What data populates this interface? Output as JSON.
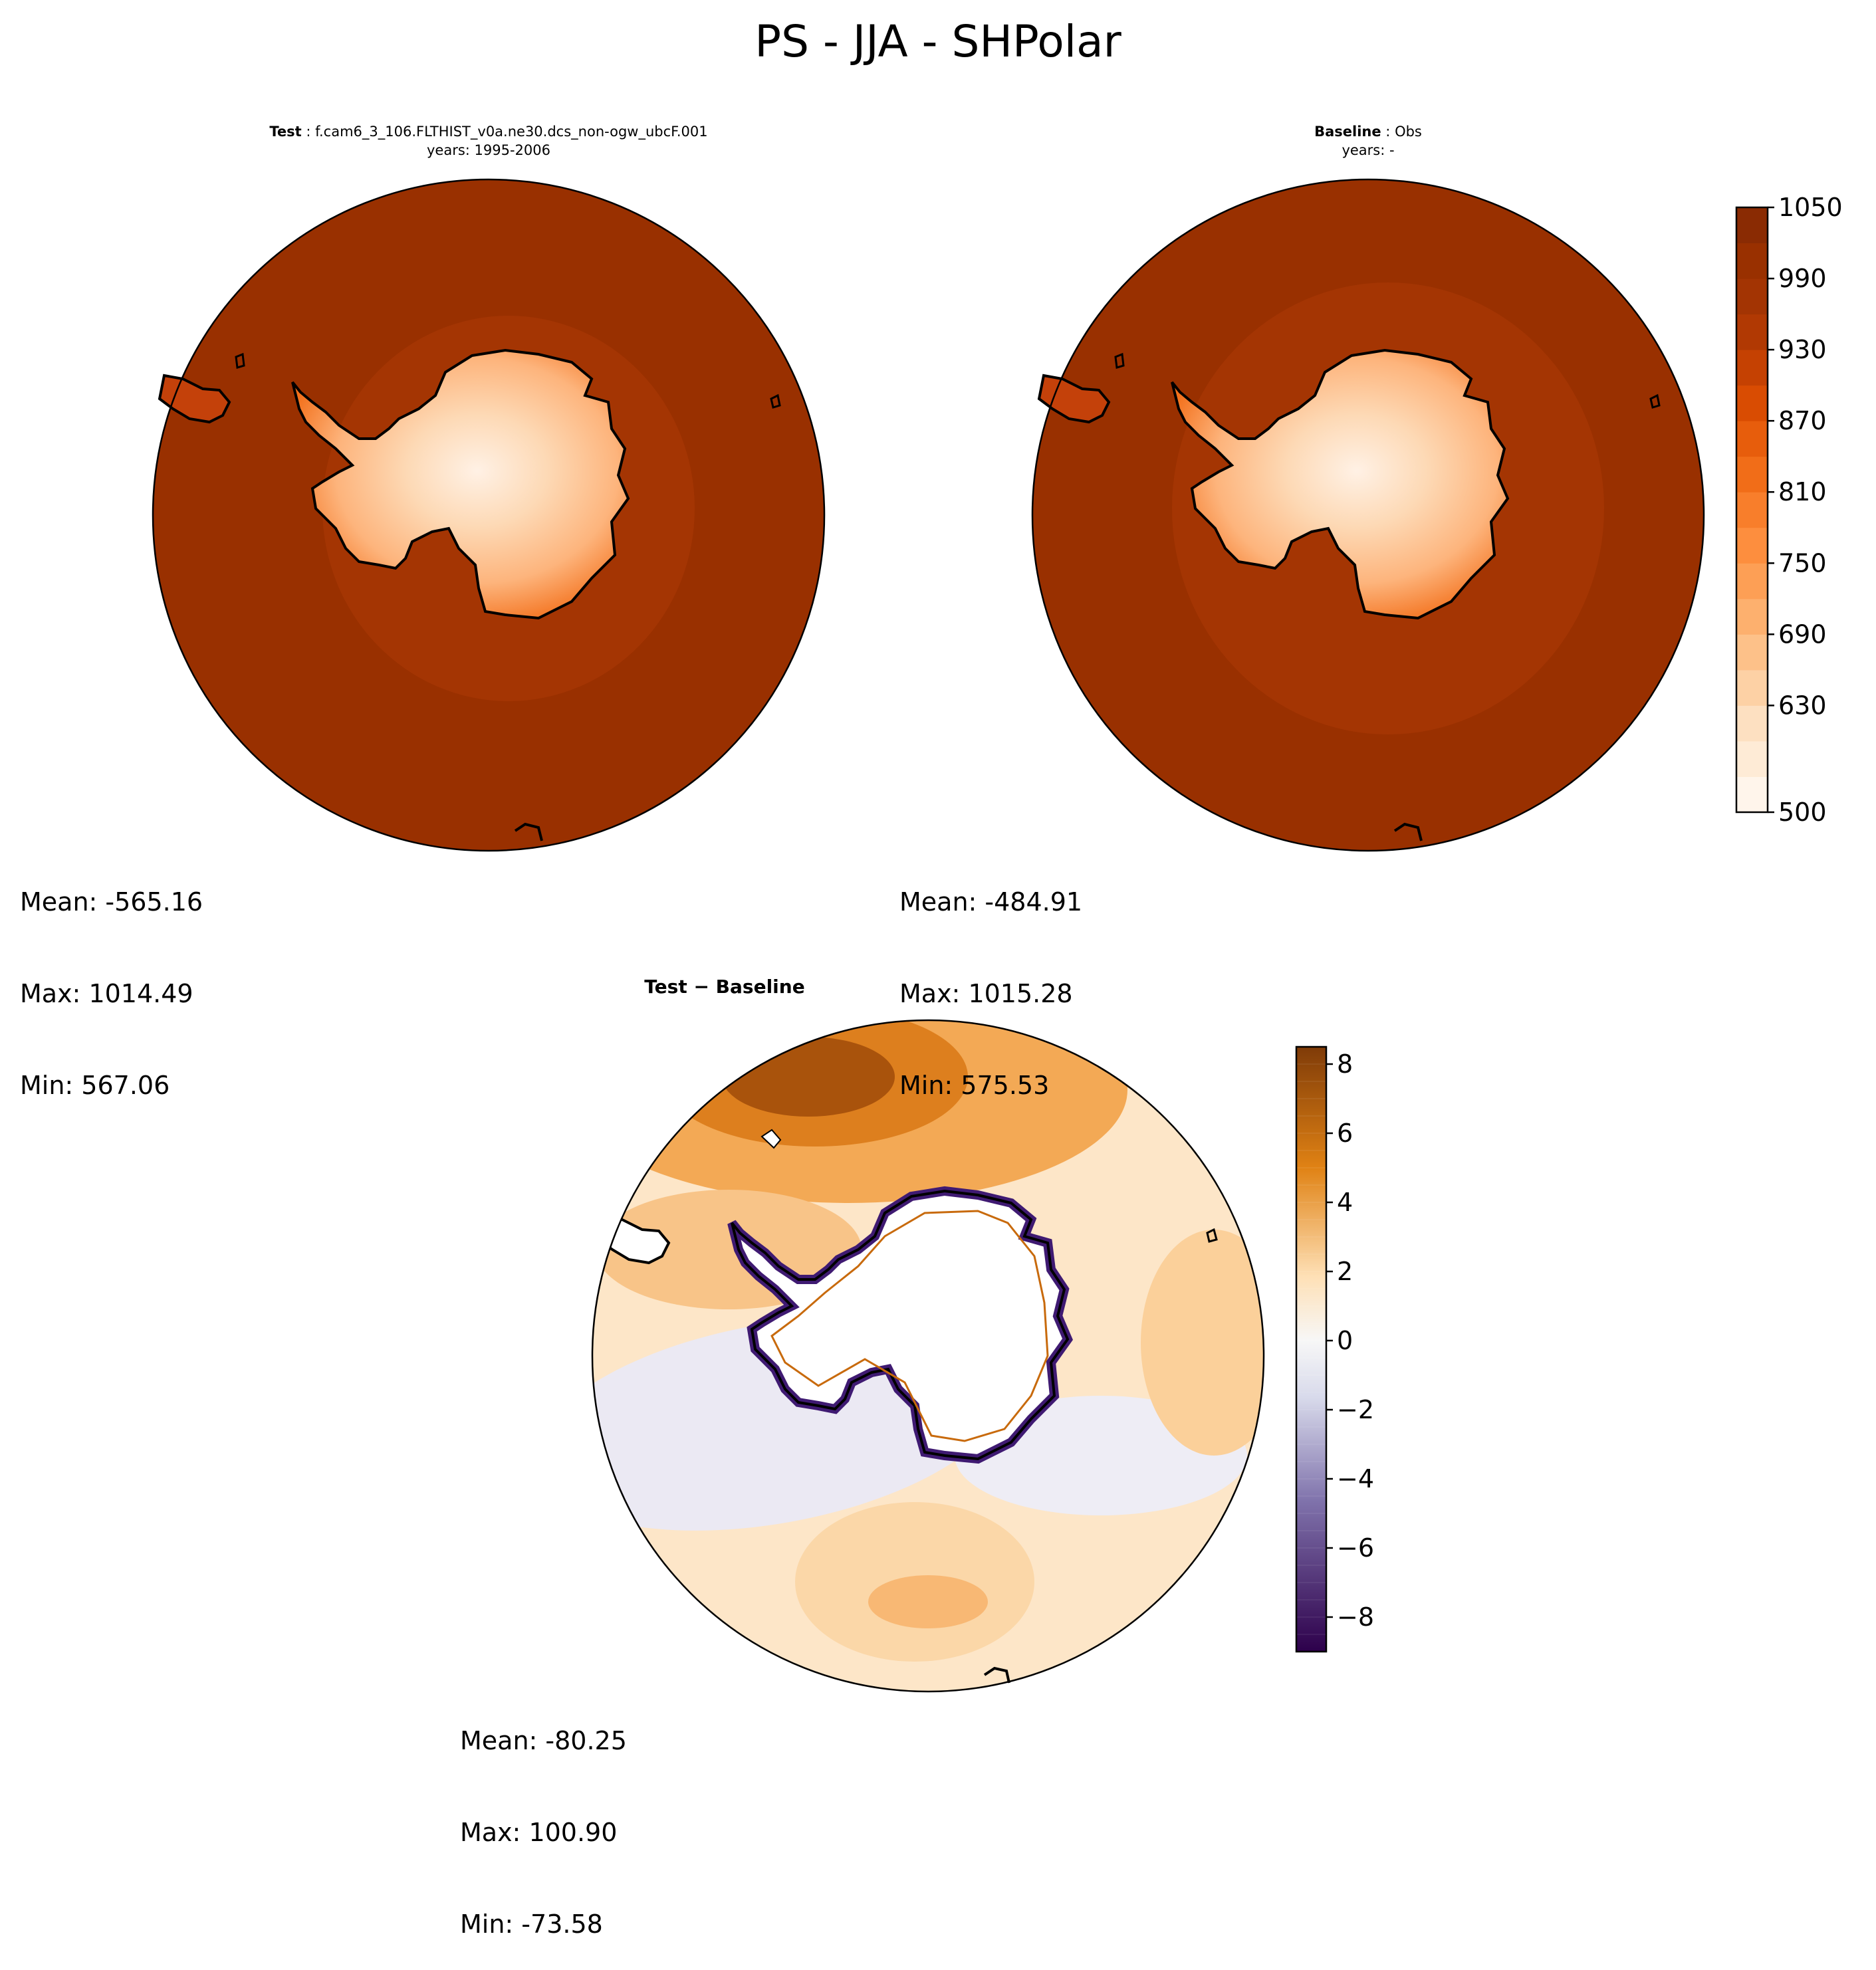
{
  "figure": {
    "title": "PS - JJA - SHPolar"
  },
  "panels": {
    "test": {
      "label": "Test",
      "case": "f.cam6_3_106.FLTHIST_v0a.ne30.dcs_non-ogw_ubcF.001",
      "years": "years: 1995-2006",
      "mean": "Mean: -565.16",
      "max": "Max: 1014.49",
      "min": "Min: 567.06"
    },
    "baseline": {
      "label": "Baseline",
      "case": "Obs",
      "years": "years: -",
      "mean": "Mean: -484.91",
      "max": "Max: 1015.28",
      "min": "Min: 575.53"
    },
    "diff": {
      "label": "Test − Baseline",
      "mean": "Mean: -80.25",
      "max": "Max: 100.90",
      "min": "Min: -73.58"
    }
  },
  "chart_data": [
    {
      "type": "heatmap",
      "projection": "south-polar-stereographic",
      "panel": "test",
      "colormap": "Oranges",
      "colorbar": {
        "range": [
          500,
          1050
        ],
        "levels": [
          500,
          570,
          600,
          630,
          660,
          690,
          720,
          750,
          780,
          810,
          840,
          870,
          900,
          930,
          960,
          990,
          1020,
          1050
        ],
        "tick_labels": [
          "500",
          "630",
          "690",
          "750",
          "810",
          "870",
          "930",
          "990",
          "1050"
        ]
      },
      "stats": {
        "mean": -565.16,
        "max": 1014.49,
        "min": 567.06
      }
    },
    {
      "type": "heatmap",
      "projection": "south-polar-stereographic",
      "panel": "baseline",
      "colormap": "Oranges",
      "colorbar": {
        "range": [
          500,
          1050
        ],
        "levels": [
          500,
          570,
          600,
          630,
          660,
          690,
          720,
          750,
          780,
          810,
          840,
          870,
          900,
          930,
          960,
          990,
          1020,
          1050
        ],
        "tick_labels": [
          "500",
          "630",
          "690",
          "750",
          "810",
          "870",
          "930",
          "990",
          "1050"
        ]
      },
      "stats": {
        "mean": -484.91,
        "max": 1015.28,
        "min": 575.53
      }
    },
    {
      "type": "heatmap",
      "projection": "south-polar-stereographic",
      "panel": "diff",
      "colormap": "PuOr_r",
      "colorbar": {
        "range": [
          -9,
          8.5
        ],
        "ticks": [
          -8,
          -6,
          -4,
          -2,
          0,
          2,
          4,
          6,
          8
        ],
        "tick_labels": [
          "−8",
          "−6",
          "−4",
          "−2",
          "0",
          "2",
          "4",
          "6",
          "8"
        ]
      },
      "stats": {
        "mean": -80.25,
        "max": 100.9,
        "min": -73.58
      }
    }
  ],
  "colors": {
    "ocean_high": "#993000",
    "ring": "#a43503",
    "coast": "#000000",
    "diff_pos_max": "#7f3b08",
    "diff_neg_max": "#2d004b",
    "diff_zero": "#f7f7f7"
  }
}
